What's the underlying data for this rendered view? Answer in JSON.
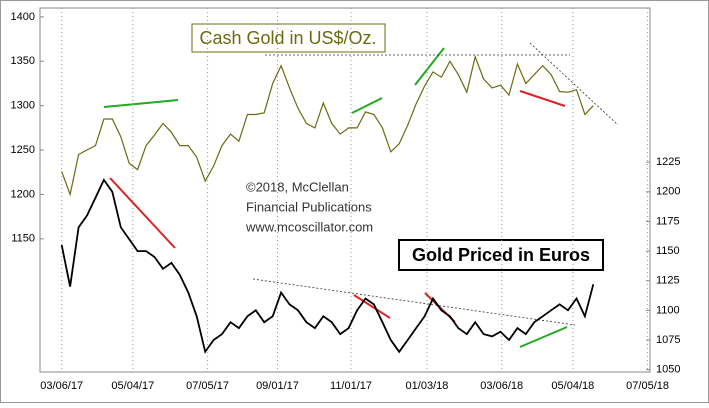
{
  "chart_data": {
    "type": "line",
    "annotations": [
      "©2018, McClellan",
      "Financial Publications",
      "www.mcoscillator.com"
    ],
    "x": [
      "03/06/17",
      "03/13/17",
      "03/20/17",
      "03/27/17",
      "04/03/17",
      "04/10/17",
      "04/17/17",
      "04/24/17",
      "05/01/17",
      "05/08/17",
      "05/15/17",
      "05/22/17",
      "05/29/17",
      "06/05/17",
      "06/12/17",
      "06/19/17",
      "06/26/17",
      "07/03/17",
      "07/10/17",
      "07/17/17",
      "07/24/17",
      "07/31/17",
      "08/07/17",
      "08/14/17",
      "08/21/17",
      "08/28/17",
      "09/04/17",
      "09/11/17",
      "09/18/17",
      "09/25/17",
      "10/02/17",
      "10/09/17",
      "10/16/17",
      "10/23/17",
      "10/30/17",
      "11/06/17",
      "11/13/17",
      "11/20/17",
      "11/27/17",
      "12/04/17",
      "12/11/17",
      "12/18/17",
      "12/25/17",
      "01/01/18",
      "01/08/18",
      "01/15/18",
      "01/22/18",
      "01/29/18",
      "02/05/18",
      "02/12/18",
      "02/19/18",
      "02/26/18",
      "03/05/18",
      "03/12/18",
      "03/19/18",
      "03/26/18",
      "04/02/18",
      "04/09/18",
      "04/16/18",
      "04/23/18",
      "04/30/18",
      "05/07/18",
      "05/14/18",
      "05/21/18"
    ],
    "series": [
      {
        "name": "Cash Gold in US$/Oz.",
        "color": "#6b6b10",
        "axis": "y",
        "values": [
          1226,
          1200,
          1245,
          1250,
          1255,
          1285,
          1285,
          1265,
          1235,
          1228,
          1255,
          1267,
          1280,
          1270,
          1255,
          1255,
          1242,
          1215,
          1232,
          1255,
          1268,
          1260,
          1290,
          1290,
          1292,
          1325,
          1345,
          1320,
          1297,
          1280,
          1275,
          1303,
          1280,
          1268,
          1275,
          1275,
          1293,
          1290,
          1275,
          1248,
          1257,
          1278,
          1302,
          1322,
          1338,
          1332,
          1350,
          1335,
          1315,
          1355,
          1330,
          1320,
          1323,
          1312,
          1347,
          1325,
          1335,
          1345,
          1335,
          1316,
          1315,
          1318,
          1290,
          1300
        ]
      },
      {
        "name": "Gold Priced in Euros",
        "color": "#000000",
        "axis": "y2",
        "values": [
          1155,
          1120,
          1170,
          1180,
          1195,
          1210,
          1200,
          1170,
          1160,
          1150,
          1150,
          1145,
          1135,
          1140,
          1130,
          1115,
          1095,
          1065,
          1075,
          1080,
          1090,
          1085,
          1095,
          1100,
          1090,
          1095,
          1115,
          1105,
          1100,
          1090,
          1085,
          1095,
          1090,
          1080,
          1085,
          1100,
          1110,
          1105,
          1090,
          1075,
          1065,
          1075,
          1085,
          1095,
          1110,
          1100,
          1095,
          1085,
          1080,
          1090,
          1080,
          1078,
          1082,
          1075,
          1085,
          1080,
          1090,
          1095,
          1100,
          1105,
          1100,
          1110,
          1095,
          1122
        ]
      }
    ],
    "xlim": [
      "02/16/17",
      "07/07/18"
    ],
    "xticks": [
      "03/06/17",
      "05/04/17",
      "07/05/17",
      "09/01/17",
      "11/01/17",
      "01/03/18",
      "03/06/18",
      "05/04/18",
      "07/05/18"
    ],
    "ylim": [
      1000,
      1410
    ],
    "yticks": [
      1150,
      1200,
      1250,
      1300,
      1350,
      1400
    ],
    "y2lim": [
      1048,
      1355
    ],
    "y2ticks": [
      1050,
      1075,
      1100,
      1125,
      1150,
      1175,
      1200,
      1225
    ],
    "grid": true
  }
}
